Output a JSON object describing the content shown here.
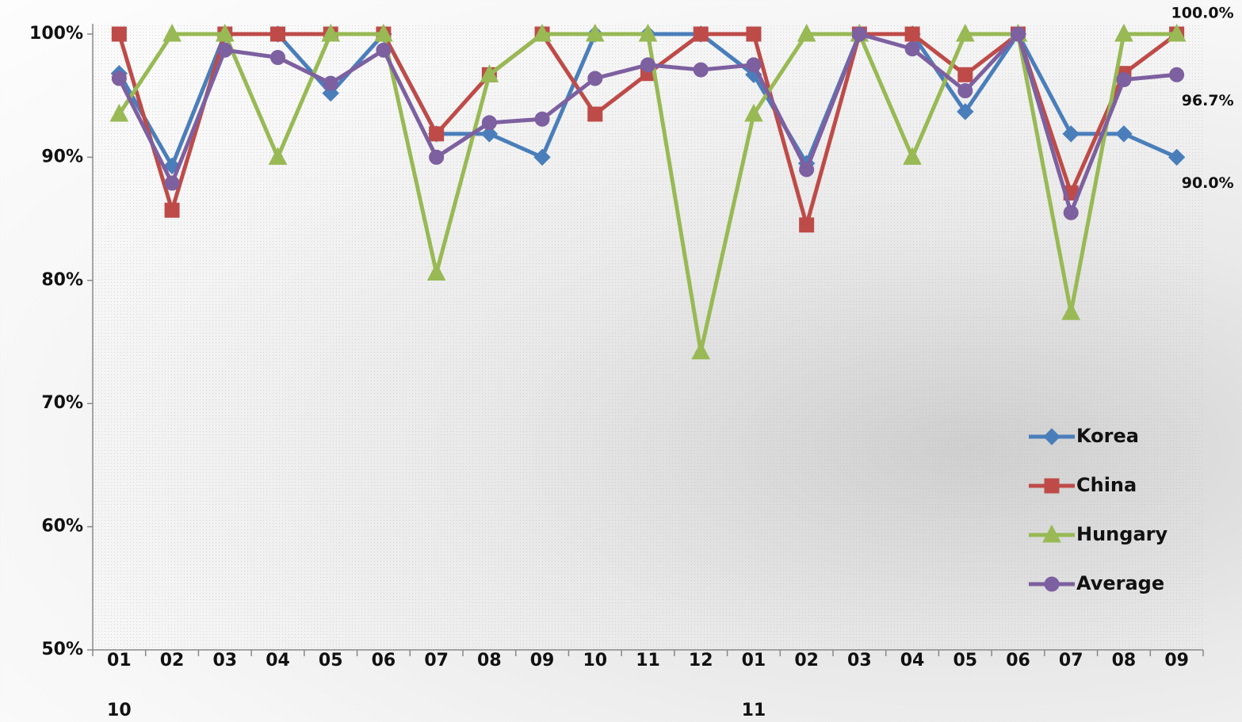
{
  "chart_data": {
    "type": "line",
    "categories": [
      "01",
      "02",
      "03",
      "04",
      "05",
      "06",
      "07",
      "08",
      "09",
      "10",
      "11",
      "12",
      "01",
      "02",
      "03",
      "04",
      "05",
      "06",
      "07",
      "08",
      "09"
    ],
    "year_labels": [
      "10",
      null,
      null,
      null,
      null,
      null,
      null,
      null,
      null,
      null,
      null,
      null,
      "11",
      null,
      null,
      null,
      null,
      null,
      null,
      null,
      null
    ],
    "ylim": [
      50,
      100
    ],
    "yticks": [
      {
        "value": 50,
        "label": "50%"
      },
      {
        "value": 60,
        "label": "60%"
      },
      {
        "value": 70,
        "label": "70%"
      },
      {
        "value": 80,
        "label": "80%"
      },
      {
        "value": 90,
        "label": "90%"
      },
      {
        "value": 100,
        "label": "100%"
      }
    ],
    "legend": "right",
    "series": [
      {
        "name": "Korea",
        "color": "#4a7ebb",
        "marker": "diamond",
        "values": [
          96.8,
          89.3,
          100,
          100,
          95.2,
          100,
          91.9,
          91.9,
          90.0,
          100,
          100,
          100,
          96.7,
          89.5,
          100,
          100,
          93.7,
          100,
          91.9,
          91.9,
          90.0
        ],
        "value_labels": [
          null,
          null,
          null,
          null,
          null,
          null,
          null,
          null,
          null,
          null,
          null,
          null,
          null,
          null,
          null,
          null,
          null,
          null,
          null,
          null,
          "90.0%"
        ]
      },
      {
        "name": "China",
        "color": "#be4b48",
        "marker": "square",
        "values": [
          100,
          85.7,
          100,
          100,
          100,
          100,
          91.9,
          96.7,
          100,
          93.5,
          96.8,
          100,
          100,
          84.5,
          100,
          100,
          96.7,
          100,
          87.1,
          96.8,
          100
        ],
        "value_labels": [
          null,
          null,
          null,
          null,
          null,
          null,
          null,
          null,
          null,
          null,
          null,
          null,
          null,
          null,
          null,
          null,
          null,
          null,
          null,
          null,
          "100.0%"
        ]
      },
      {
        "name": "Hungary",
        "color": "#98b954",
        "marker": "triangle",
        "values": [
          93.5,
          100,
          100,
          90,
          100,
          100,
          80.6,
          96.7,
          100,
          100,
          100,
          74.2,
          93.5,
          100,
          100,
          90,
          100,
          100,
          77.4,
          100,
          100
        ],
        "value_labels": [
          null,
          null,
          null,
          null,
          null,
          null,
          null,
          null,
          null,
          null,
          null,
          null,
          null,
          null,
          null,
          null,
          null,
          null,
          null,
          null,
          null
        ]
      },
      {
        "name": "Average",
        "color": "#7d60a0",
        "marker": "circle",
        "values": [
          96.4,
          87.9,
          98.7,
          98.1,
          96.0,
          98.7,
          90.0,
          92.8,
          93.1,
          96.4,
          97.5,
          97.1,
          97.5,
          89.0,
          100,
          98.8,
          95.4,
          100,
          85.5,
          96.3,
          96.7
        ],
        "value_labels": [
          null,
          null,
          null,
          null,
          null,
          null,
          null,
          null,
          null,
          null,
          null,
          null,
          null,
          null,
          null,
          null,
          null,
          null,
          null,
          null,
          "96.7%"
        ]
      }
    ]
  }
}
